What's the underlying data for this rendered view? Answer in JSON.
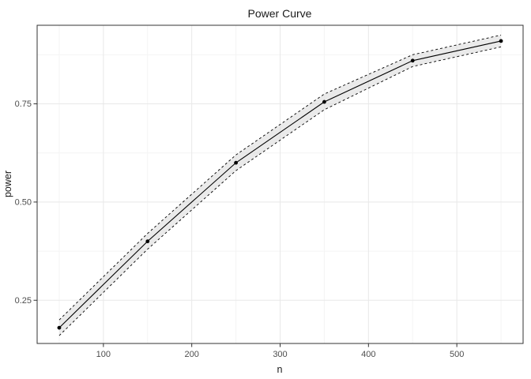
{
  "chart_data": {
    "type": "line",
    "title": "Power Curve",
    "xlabel": "n",
    "ylabel": "power",
    "x": [
      50,
      150,
      250,
      350,
      450,
      550
    ],
    "series": [
      {
        "name": "power",
        "values": [
          0.18,
          0.4,
          0.6,
          0.755,
          0.86,
          0.91
        ]
      }
    ],
    "ribbon": {
      "lower": [
        0.16,
        0.38,
        0.58,
        0.735,
        0.845,
        0.895
      ],
      "upper": [
        0.2,
        0.42,
        0.62,
        0.775,
        0.875,
        0.925
      ]
    },
    "xlim": [
      25,
      575
    ],
    "ylim": [
      0.14,
      0.95
    ],
    "xticks": {
      "values": [
        100,
        200,
        300,
        400,
        500
      ],
      "labels": [
        "100",
        "200",
        "300",
        "400",
        "500"
      ]
    },
    "yticks": {
      "values": [
        0.25,
        0.5,
        0.75
      ],
      "labels": [
        "0.25",
        "0.50",
        "0.75"
      ]
    },
    "xminor": [
      50,
      150,
      250,
      350,
      450,
      550
    ],
    "yminor": [
      0.375,
      0.625,
      0.875
    ],
    "grid": true,
    "legend": "none",
    "colors": {
      "line": "#000000",
      "point": "#000000",
      "ribbon_fill": "#d9d9d9",
      "ribbon_edge": "#000000",
      "grid_major": "#e8e8e8",
      "grid_minor": "#f4f4f4",
      "panel_border": "#333333",
      "tick_mark": "#333333",
      "tick_text": "#4d4d4d",
      "background": "#ffffff"
    }
  }
}
